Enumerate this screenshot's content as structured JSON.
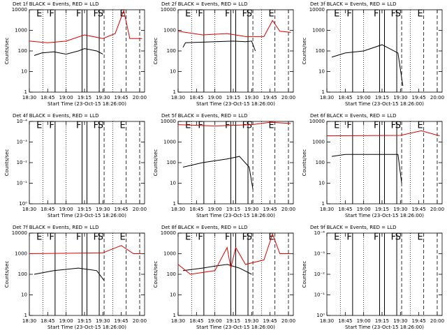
{
  "chart_data": [
    {
      "type": "line",
      "title": "Det 1f BLACK = Events, RED = LLD",
      "x_label": "Start Time (23-Oct-15 18:26:00)",
      "y_label": "Counts/sec",
      "log_y": true,
      "xlim": [
        "18:30",
        "20:04"
      ],
      "xticks": [
        "18:30",
        "18:45",
        "19:00",
        "19:15",
        "19:30",
        "19:45",
        "20:00"
      ],
      "ylim": [
        1,
        10000
      ],
      "yticks": [
        1,
        10,
        100,
        1000,
        10000
      ],
      "series": [
        {
          "color": "#000000",
          "x": [
            "18:34",
            "18:40",
            "18:50",
            "19:00",
            "19:10",
            "19:15",
            "19:25",
            "19:30"
          ],
          "values": [
            60,
            80,
            90,
            70,
            100,
            130,
            100,
            70
          ]
        },
        {
          "color": "#e00000",
          "x": [
            "18:30",
            "18:45",
            "19:00",
            "19:15",
            "19:30",
            "19:40",
            "19:47",
            "19:52",
            "20:02"
          ],
          "values": [
            300,
            250,
            300,
            600,
            400,
            700,
            9000,
            400,
            400
          ]
        }
      ],
      "markers": [
        {
          "x": "18:41",
          "label": "E",
          "style": "dotted"
        },
        {
          "x": "18:51",
          "label": "F",
          "style": "solid"
        },
        {
          "x": "19:00",
          "style": "dotted"
        },
        {
          "x": "19:13",
          "label": "F",
          "style": "solid"
        },
        {
          "x": "19:17",
          "style": "solid"
        },
        {
          "x": "19:27",
          "label": "F",
          "style": "solid"
        },
        {
          "x": "19:31",
          "label": "S",
          "style": "dashed"
        },
        {
          "x": "19:38",
          "style": "dotted"
        },
        {
          "x": "19:49",
          "label": "E",
          "style": "dashed"
        },
        {
          "x": "20:00",
          "style": "dashed"
        }
      ]
    },
    {
      "type": "line",
      "title": "Det 2f BLACK = Events, RED = LLD",
      "x_label": "Start Time (23-Oct-15 18:26:00)",
      "y_label": "Counts/sec",
      "log_y": true,
      "xlim": [
        "18:30",
        "20:04"
      ],
      "xticks": [
        "18:30",
        "18:45",
        "19:00",
        "19:15",
        "19:30",
        "19:45",
        "20:00"
      ],
      "ylim": [
        1,
        10000
      ],
      "yticks": [
        1,
        10,
        100,
        1000,
        10000
      ],
      "series": [
        {
          "color": "#000000",
          "x": [
            "18:34",
            "18:36",
            "19:00",
            "19:15",
            "19:25",
            "19:30",
            "19:33"
          ],
          "values": [
            150,
            250,
            280,
            300,
            280,
            300,
            100
          ]
        },
        {
          "color": "#e00000",
          "x": [
            "18:30",
            "18:50",
            "19:10",
            "19:25",
            "19:40",
            "19:47",
            "19:53",
            "20:02"
          ],
          "values": [
            900,
            600,
            700,
            500,
            500,
            3000,
            900,
            800
          ]
        }
      ],
      "markers": [
        {
          "x": "18:41",
          "label": "E",
          "style": "dotted"
        },
        {
          "x": "18:51",
          "label": "F",
          "style": "solid"
        },
        {
          "x": "19:00",
          "style": "dotted"
        },
        {
          "x": "19:13",
          "label": "F",
          "style": "solid"
        },
        {
          "x": "19:17",
          "style": "solid"
        },
        {
          "x": "19:27",
          "label": "F",
          "style": "solid"
        },
        {
          "x": "19:31",
          "label": "S",
          "style": "dashed"
        },
        {
          "x": "19:38",
          "style": "dotted"
        },
        {
          "x": "19:49",
          "label": "E",
          "style": "dashed"
        },
        {
          "x": "20:00",
          "style": "dashed"
        }
      ]
    },
    {
      "type": "line",
      "title": "Det 3f BLACK = Events, RED = LLD",
      "x_label": "Start Time (23-Oct-15 18:26:00)",
      "y_label": "Counts/sec",
      "log_y": true,
      "xlim": [
        "18:30",
        "20:04"
      ],
      "xticks": [
        "18:30",
        "18:45",
        "19:00",
        "19:15",
        "19:30",
        "19:45",
        "20:00"
      ],
      "ylim": [
        1,
        10000
      ],
      "yticks": [
        1,
        10,
        100,
        1000,
        10000
      ],
      "series": [
        {
          "color": "#000000",
          "x": [
            "18:34",
            "18:45",
            "19:00",
            "19:15",
            "19:28",
            "19:32"
          ],
          "values": [
            50,
            80,
            100,
            200,
            80,
            2
          ]
        }
      ],
      "markers": [
        {
          "x": "18:41",
          "label": "E",
          "style": "dotted"
        },
        {
          "x": "18:51",
          "label": "F",
          "style": "solid"
        },
        {
          "x": "19:00",
          "style": "dotted"
        },
        {
          "x": "19:13",
          "label": "F",
          "style": "solid"
        },
        {
          "x": "19:17",
          "style": "solid"
        },
        {
          "x": "19:27",
          "label": "F",
          "style": "solid"
        },
        {
          "x": "19:31",
          "label": "S",
          "style": "dashed"
        },
        {
          "x": "19:38",
          "style": "dotted"
        },
        {
          "x": "19:49",
          "label": "E",
          "style": "dashed"
        },
        {
          "x": "20:00",
          "style": "dashed"
        }
      ]
    },
    {
      "type": "line",
      "title": "Det 4f BLACK = Events, RED = LLD",
      "x_label": "Start Time (23-Oct-15 18:26:00)",
      "y_label": "Counts/sec",
      "log_y": true,
      "xlim": [
        "18:30",
        "20:04"
      ],
      "xticks": [
        "18:30",
        "18:45",
        "19:00",
        "19:15",
        "19:30",
        "19:45",
        "20:00"
      ],
      "ylim": [
        1,
        0.0001
      ],
      "yticks": [
        {
          "value": 1,
          "label": "10⁰"
        },
        {
          "value": 0.1,
          "label": "10⁻¹"
        },
        {
          "value": 0.01,
          "label": "10⁻²"
        },
        {
          "value": 0.001,
          "label": "10⁻³"
        },
        {
          "value": 0.0001,
          "label": "10⁻⁴"
        }
      ],
      "series": [],
      "markers": [
        {
          "x": "18:41",
          "label": "E",
          "style": "dotted"
        },
        {
          "x": "18:51",
          "label": "F",
          "style": "solid"
        },
        {
          "x": "19:00",
          "style": "dotted"
        },
        {
          "x": "19:13",
          "label": "F",
          "style": "solid"
        },
        {
          "x": "19:17",
          "style": "solid"
        },
        {
          "x": "19:27",
          "label": "F",
          "style": "solid"
        },
        {
          "x": "19:31",
          "label": "S",
          "style": "dashed"
        },
        {
          "x": "19:38",
          "style": "dotted"
        },
        {
          "x": "19:49",
          "label": "E",
          "style": "dashed"
        },
        {
          "x": "20:00",
          "style": "dashed"
        }
      ]
    },
    {
      "type": "line",
      "title": "Det 5f BLACK = Events, RED = LLD",
      "x_label": "Start Time (23-Oct-15 18:26:00)",
      "y_label": "Counts/sec",
      "log_y": true,
      "xlim": [
        "18:30",
        "20:04"
      ],
      "xticks": [
        "18:30",
        "18:45",
        "19:00",
        "19:15",
        "19:30",
        "19:45",
        "20:00"
      ],
      "ylim": [
        1,
        10000
      ],
      "yticks": [
        1,
        10,
        100,
        1000,
        10000
      ],
      "series": [
        {
          "color": "#000000",
          "x": [
            "18:34",
            "18:50",
            "19:10",
            "19:20",
            "19:28",
            "19:31"
          ],
          "values": [
            60,
            100,
            150,
            200,
            60,
            5
          ]
        },
        {
          "color": "#e00000",
          "x": [
            "18:30",
            "19:00",
            "19:30",
            "19:45",
            "20:02"
          ],
          "values": [
            7000,
            6000,
            7000,
            9000,
            8000
          ]
        }
      ],
      "markers": [
        {
          "x": "18:41",
          "label": "E",
          "style": "dotted"
        },
        {
          "x": "18:51",
          "label": "F",
          "style": "solid"
        },
        {
          "x": "19:00",
          "style": "dotted"
        },
        {
          "x": "19:13",
          "label": "F",
          "style": "solid"
        },
        {
          "x": "19:17",
          "style": "solid"
        },
        {
          "x": "19:27",
          "label": "F",
          "style": "solid"
        },
        {
          "x": "19:31",
          "label": "S",
          "style": "dashed"
        },
        {
          "x": "19:38",
          "style": "dotted"
        },
        {
          "x": "19:49",
          "label": "E",
          "style": "dashed"
        },
        {
          "x": "20:00",
          "style": "dashed"
        }
      ]
    },
    {
      "type": "line",
      "title": "Det 6f BLACK = Events, RED = LLD",
      "x_label": "Start Time (23-Oct-15 18:26:00)",
      "y_label": "Counts/sec",
      "log_y": true,
      "xlim": [
        "18:30",
        "20:04"
      ],
      "xticks": [
        "18:30",
        "18:45",
        "19:00",
        "19:15",
        "19:30",
        "19:45",
        "20:00"
      ],
      "ylim": [
        1,
        10000
      ],
      "yticks": [
        1,
        10,
        100,
        1000,
        10000
      ],
      "series": [
        {
          "color": "#000000",
          "x": [
            "18:34",
            "18:45",
            "19:00",
            "19:28",
            "19:31"
          ],
          "values": [
            200,
            250,
            250,
            250,
            10
          ]
        },
        {
          "color": "#e00000",
          "x": [
            "18:30",
            "19:30",
            "19:47",
            "20:02"
          ],
          "values": [
            2000,
            2100,
            3500,
            2000
          ]
        }
      ],
      "markers": [
        {
          "x": "18:41",
          "label": "E",
          "style": "dotted"
        },
        {
          "x": "18:51",
          "label": "F",
          "style": "solid"
        },
        {
          "x": "19:00",
          "style": "dotted"
        },
        {
          "x": "19:13",
          "label": "F",
          "style": "solid"
        },
        {
          "x": "19:17",
          "style": "solid"
        },
        {
          "x": "19:27",
          "label": "F",
          "style": "solid"
        },
        {
          "x": "19:31",
          "label": "S",
          "style": "dashed"
        },
        {
          "x": "19:38",
          "style": "dotted"
        },
        {
          "x": "19:49",
          "label": "E",
          "style": "dashed"
        },
        {
          "x": "20:00",
          "style": "dashed"
        }
      ]
    },
    {
      "type": "line",
      "title": "Det 7f BLACK = Events, RED = LLD",
      "x_label": "Start Time (23-Oct-15 18:26:00)",
      "y_label": "Counts/sec",
      "log_y": true,
      "xlim": [
        "18:30",
        "20:04"
      ],
      "xticks": [
        "18:30",
        "18:45",
        "19:00",
        "19:15",
        "19:30",
        "19:45",
        "20:00"
      ],
      "ylim": [
        1,
        10000
      ],
      "yticks": [
        1,
        10,
        100,
        1000,
        10000
      ],
      "series": [
        {
          "color": "#000000",
          "x": [
            "18:34",
            "18:50",
            "19:10",
            "19:25",
            "19:31"
          ],
          "values": [
            100,
            150,
            200,
            150,
            50
          ]
        },
        {
          "color": "#e00000",
          "x": [
            "18:30",
            "19:30",
            "19:45",
            "19:55",
            "20:02"
          ],
          "values": [
            1000,
            1100,
            2500,
            1000,
            1000
          ]
        }
      ],
      "markers": [
        {
          "x": "18:41",
          "label": "E",
          "style": "dotted"
        },
        {
          "x": "18:51",
          "label": "F",
          "style": "solid"
        },
        {
          "x": "19:00",
          "style": "dotted"
        },
        {
          "x": "19:13",
          "label": "F",
          "style": "solid"
        },
        {
          "x": "19:17",
          "style": "solid"
        },
        {
          "x": "19:27",
          "label": "F",
          "style": "solid"
        },
        {
          "x": "19:31",
          "label": "S",
          "style": "dashed"
        },
        {
          "x": "19:38",
          "style": "dotted"
        },
        {
          "x": "19:49",
          "label": "E",
          "style": "dashed"
        },
        {
          "x": "20:00",
          "style": "dashed"
        }
      ]
    },
    {
      "type": "line",
      "title": "Det 8f BLACK = Events, RED = LLD",
      "x_label": "Start Time (23-Oct-15 18:26:00)",
      "y_label": "Counts/sec",
      "log_y": true,
      "xlim": [
        "18:30",
        "20:04"
      ],
      "xticks": [
        "18:30",
        "18:45",
        "19:00",
        "19:15",
        "19:30",
        "19:45",
        "20:00"
      ],
      "ylim": [
        1,
        10000
      ],
      "yticks": [
        1,
        10,
        100,
        1000,
        10000
      ],
      "series": [
        {
          "color": "#000000",
          "x": [
            "18:34",
            "18:50",
            "19:00",
            "19:10",
            "19:20",
            "19:30"
          ],
          "values": [
            150,
            200,
            250,
            300,
            200,
            100
          ]
        },
        {
          "color": "#e00000",
          "x": [
            "18:30",
            "18:40",
            "19:00",
            "19:10",
            "19:13",
            "19:17",
            "19:25",
            "19:40",
            "19:47",
            "19:53",
            "20:02"
          ],
          "values": [
            300,
            100,
            150,
            2000,
            200,
            2000,
            300,
            500,
            9000,
            1000,
            1000
          ]
        }
      ],
      "markers": [
        {
          "x": "18:41",
          "label": "E",
          "style": "dotted"
        },
        {
          "x": "18:51",
          "label": "F",
          "style": "solid"
        },
        {
          "x": "19:00",
          "style": "dotted"
        },
        {
          "x": "19:13",
          "label": "F",
          "style": "solid"
        },
        {
          "x": "19:17",
          "style": "solid"
        },
        {
          "x": "19:27",
          "label": "F",
          "style": "solid"
        },
        {
          "x": "19:31",
          "label": "S",
          "style": "dashed"
        },
        {
          "x": "19:38",
          "style": "dotted"
        },
        {
          "x": "19:49",
          "label": "E",
          "style": "dashed"
        },
        {
          "x": "20:00",
          "style": "dashed"
        }
      ]
    },
    {
      "type": "line",
      "title": "Det 9f BLACK = Events, RED = LLD",
      "x_label": "Start Time (23-Oct-15 18:26:00)",
      "y_label": "Counts/sec",
      "log_y": true,
      "xlim": [
        "18:30",
        "20:04"
      ],
      "xticks": [
        "18:30",
        "18:45",
        "19:00",
        "19:15",
        "19:30",
        "19:45",
        "20:00"
      ],
      "ylim": [
        1,
        0.0001
      ],
      "yticks": [
        {
          "value": 1,
          "label": "10⁰"
        },
        {
          "value": 0.1,
          "label": "10⁻¹"
        },
        {
          "value": 0.01,
          "label": "10⁻²"
        },
        {
          "value": 0.001,
          "label": "10⁻³"
        },
        {
          "value": 0.0001,
          "label": "10⁻⁴"
        }
      ],
      "series": [],
      "markers": [
        {
          "x": "18:41",
          "label": "E",
          "style": "dotted"
        },
        {
          "x": "18:51",
          "label": "F",
          "style": "solid"
        },
        {
          "x": "19:00",
          "style": "dotted"
        },
        {
          "x": "19:13",
          "label": "F",
          "style": "solid"
        },
        {
          "x": "19:17",
          "style": "solid"
        },
        {
          "x": "19:27",
          "label": "F",
          "style": "solid"
        },
        {
          "x": "19:31",
          "label": "S",
          "style": "dashed"
        },
        {
          "x": "19:38",
          "style": "dotted"
        },
        {
          "x": "19:49",
          "label": "E",
          "style": "dashed"
        },
        {
          "x": "20:00",
          "style": "dashed"
        }
      ]
    }
  ]
}
